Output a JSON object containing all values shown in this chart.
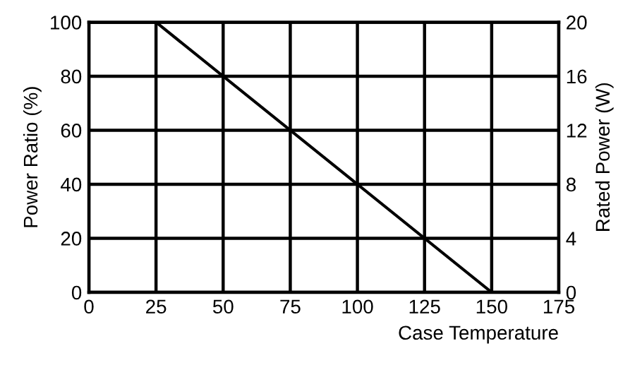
{
  "chart_data": {
    "type": "line",
    "xlabel": "Case Temperature",
    "ylabel": "Power Ratio (%)",
    "y2label": "Rated Power (W)",
    "series": [
      {
        "x": [
          0,
          25,
          150
        ],
        "values": [
          100,
          100,
          0
        ],
        "color": "#000000"
      }
    ],
    "xlim": [
      0,
      175
    ],
    "xticks": [
      0,
      25,
      50,
      75,
      100,
      125,
      150,
      175
    ],
    "ylim": [
      0,
      100
    ],
    "yticks": [
      0,
      20,
      40,
      60,
      80,
      100
    ],
    "y2lim": [
      0,
      20
    ],
    "y2ticks": [
      0,
      4,
      8,
      12,
      16,
      20
    ],
    "grid": true,
    "line_style": "solid"
  }
}
